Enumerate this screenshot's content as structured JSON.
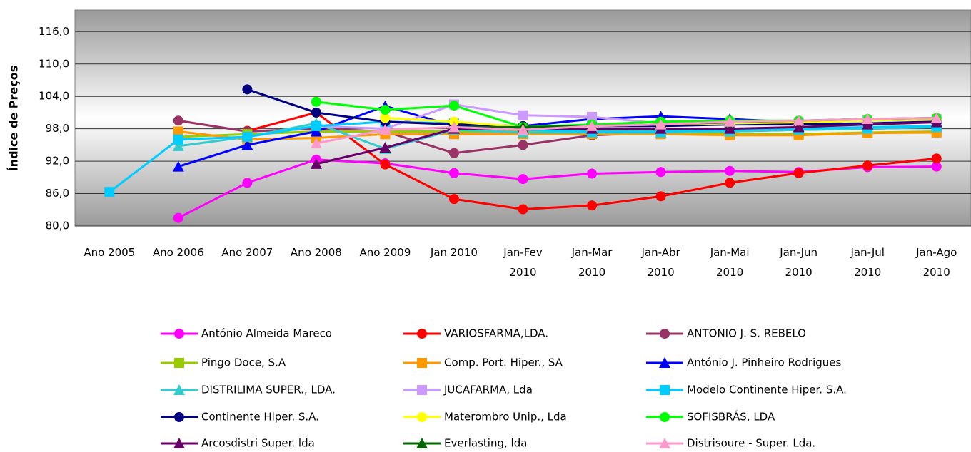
{
  "chart_data": {
    "type": "line",
    "y_label": "Índice de Preços",
    "categories": [
      "Ano 2005",
      "Ano 2006",
      "Ano 2007",
      "Ano 2008",
      "Ano 2009",
      "Jan 2010",
      "Jan-Fev 2010",
      "Jan-Mar 2010",
      "Jan-Abr 2010",
      "Jan-Mai 2010",
      "Jan-Jun 2010",
      "Jan-Jul 2010",
      "Jan-Ago 2010"
    ],
    "ylim": [
      80,
      120
    ],
    "yticks": [
      {
        "value": 80,
        "label": "80,0"
      },
      {
        "value": 86,
        "label": "86,0"
      },
      {
        "value": 92,
        "label": "92,0"
      },
      {
        "value": 98,
        "label": "98,0"
      },
      {
        "value": 104,
        "label": "104,0"
      },
      {
        "value": 110,
        "label": "110,0"
      },
      {
        "value": 116,
        "label": "116,0"
      }
    ],
    "grid": true,
    "series": [
      {
        "name": "António Almeida Mareco",
        "color": "#ff00ff",
        "marker": "circle",
        "values": [
          null,
          81.5,
          88,
          92.3,
          91.6,
          89.8,
          88.7,
          89.7,
          90,
          90.2,
          90,
          90.9,
          91
        ]
      },
      {
        "name": "VARIOSFARMA,LDA.",
        "color": "#ff0000",
        "marker": "circle",
        "values": [
          null,
          null,
          97.6,
          101,
          91.4,
          85,
          83.1,
          83.8,
          85.5,
          88,
          89.8,
          91.2,
          92.5
        ]
      },
      {
        "name": "ANTONIO J. S. REBELO",
        "color": "#993366",
        "marker": "circle",
        "values": [
          null,
          99.5,
          97.5,
          98,
          97.5,
          93.5,
          95,
          96.8,
          97.3,
          97.5,
          97.8,
          98,
          98.3
        ]
      },
      {
        "name": "Pingo Doce, S.A",
        "color": "#99cc00",
        "marker": "square",
        "values": [
          null,
          96.5,
          97,
          97.5,
          97.5,
          97.5,
          97.5,
          97.3,
          97.3,
          97,
          97,
          97.3,
          97.5
        ]
      },
      {
        "name": "Comp. Port. Hiper., SA",
        "color": "#ff9900",
        "marker": "square",
        "values": [
          null,
          97.5,
          96,
          96.3,
          97,
          97,
          97,
          97,
          97,
          96.8,
          96.8,
          97.2,
          97.3
        ]
      },
      {
        "name": "António J. Pinheiro Rodrigues",
        "color": "#0000ff",
        "marker": "triangle",
        "values": [
          null,
          91,
          95,
          97.5,
          102.2,
          98.5,
          98.5,
          99.8,
          100.3,
          99.8,
          99.2,
          99.5,
          99.8
        ]
      },
      {
        "name": "DISTRILIMA SUPER., LDA.",
        "color": "#33cccc",
        "marker": "triangle",
        "values": [
          null,
          94.8,
          96.5,
          99,
          94.3,
          97.8,
          97.3,
          97.3,
          97.3,
          97.5,
          97.8,
          98,
          98.3
        ]
      },
      {
        "name": "JUCAFARMA, Lda",
        "color": "#cc99ff",
        "marker": "square",
        "values": [
          null,
          null,
          null,
          98.5,
          98,
          102.5,
          100.5,
          100.2,
          99,
          99,
          99.2,
          99.6,
          99.8
        ]
      },
      {
        "name": "Modelo Continente Hiper. S.A.",
        "color": "#00ccff",
        "marker": "square",
        "values": [
          86.3,
          96,
          96.5,
          98.5,
          99.3,
          99,
          97.8,
          97.5,
          97.5,
          97.8,
          98,
          98.3,
          98.5
        ]
      },
      {
        "name": "Continente Hiper. S.A.",
        "color": "#000080",
        "marker": "circle",
        "values": [
          null,
          null,
          105.3,
          101,
          99.3,
          98.8,
          98.5,
          98.5,
          98.5,
          98.8,
          98.8,
          99,
          99.3
        ]
      },
      {
        "name": "Materombro Unip., Lda",
        "color": "#ffff00",
        "marker": "circle",
        "values": [
          null,
          null,
          null,
          null,
          100,
          99.3,
          98.3,
          98.5,
          98.8,
          99,
          99.2,
          99.5,
          99.8
        ]
      },
      {
        "name": "SOFISBRÁS, LDA",
        "color": "#00ff00",
        "marker": "circle",
        "values": [
          null,
          null,
          null,
          103,
          101.5,
          102.3,
          98.3,
          98.8,
          99.3,
          99.5,
          99.5,
          99.8,
          100
        ]
      },
      {
        "name": "Arcosdistri Super. lda",
        "color": "#660066",
        "marker": "triangle",
        "values": [
          null,
          null,
          null,
          91.5,
          94.5,
          98,
          98,
          98,
          98,
          98,
          98.3,
          98.8,
          99.2
        ]
      },
      {
        "name": "Everlasting, lda",
        "color": "#006600",
        "marker": "triangle",
        "values": [
          null,
          null,
          null,
          null,
          null,
          98.3,
          98.3,
          98.5,
          98.8,
          99.2,
          99.5,
          99.8,
          100
        ]
      },
      {
        "name": "Distrisoure - Super. Lda.",
        "color": "#ff99cc",
        "marker": "triangle",
        "values": [
          null,
          null,
          null,
          95.3,
          97.8,
          98.3,
          97.8,
          98.5,
          98.8,
          99.3,
          99.5,
          99.8,
          100
        ]
      }
    ]
  }
}
